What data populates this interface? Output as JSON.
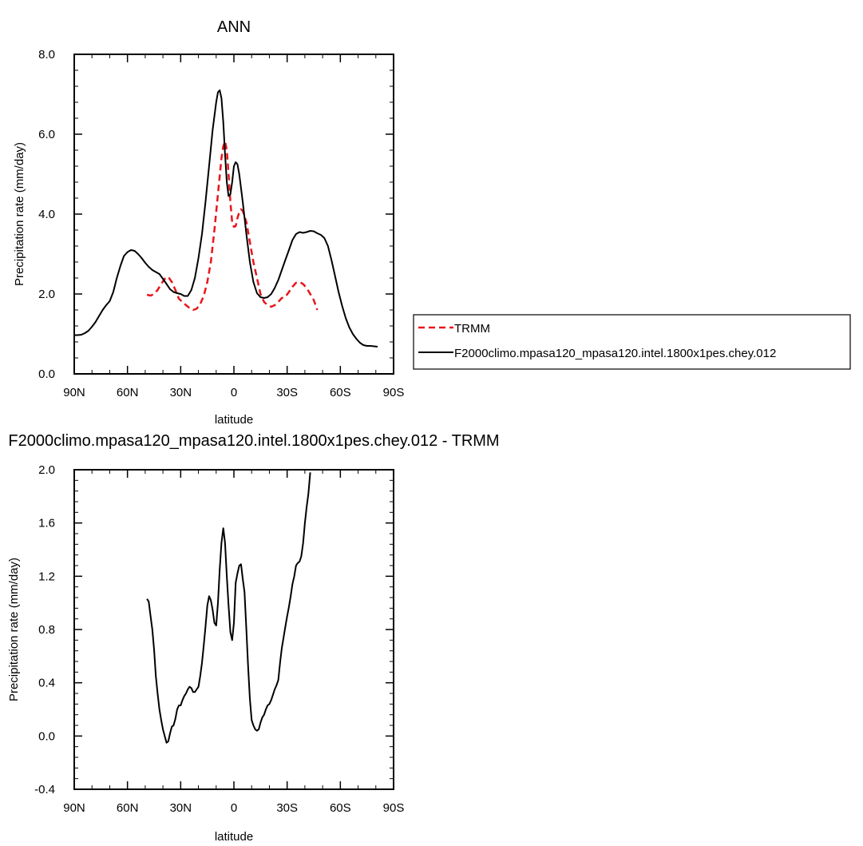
{
  "chart_data": [
    {
      "type": "line",
      "title": "ANN",
      "xlabel": "latitude",
      "ylabel": "Precipitation rate (mm/day)",
      "xlim": [
        90,
        -90
      ],
      "ylim": [
        0,
        8
      ],
      "xticks": [
        90,
        60,
        30,
        0,
        -30,
        -60,
        -90
      ],
      "xtick_labels": [
        "90N",
        "60N",
        "30N",
        "0",
        "30S",
        "60S",
        "90S"
      ],
      "yticks": [
        0,
        2,
        4,
        6,
        8
      ],
      "ytick_labels": [
        "0.0",
        "2.0",
        "4.0",
        "6.0",
        "8.0"
      ],
      "legend_position": "right",
      "series": [
        {
          "name": "TRMM",
          "color": "#e8161c",
          "dash": "dashed",
          "points": [
            [
              49,
              1.98
            ],
            [
              47,
              1.96
            ],
            [
              45,
              2.0
            ],
            [
              43,
              2.1
            ],
            [
              41,
              2.25
            ],
            [
              39,
              2.38
            ],
            [
              37,
              2.43
            ],
            [
              35,
              2.3
            ],
            [
              33,
              2.1
            ],
            [
              31,
              1.88
            ],
            [
              29,
              1.8
            ],
            [
              27,
              1.72
            ],
            [
              25,
              1.65
            ],
            [
              23,
              1.6
            ],
            [
              21,
              1.63
            ],
            [
              19,
              1.75
            ],
            [
              17,
              1.95
            ],
            [
              15,
              2.3
            ],
            [
              13,
              2.8
            ],
            [
              11,
              3.6
            ],
            [
              9,
              4.5
            ],
            [
              7,
              5.4
            ],
            [
              6,
              5.7
            ],
            [
              5,
              5.82
            ],
            [
              4,
              5.6
            ],
            [
              3,
              5.0
            ],
            [
              2,
              4.3
            ],
            [
              1,
              3.8
            ],
            [
              0,
              3.68
            ],
            [
              -1,
              3.7
            ],
            [
              -2,
              3.9
            ],
            [
              -3,
              4.05
            ],
            [
              -4,
              4.12
            ],
            [
              -5,
              4.08
            ],
            [
              -7,
              3.8
            ],
            [
              -9,
              3.3
            ],
            [
              -11,
              2.8
            ],
            [
              -13,
              2.4
            ],
            [
              -15,
              2.0
            ],
            [
              -17,
              1.8
            ],
            [
              -19,
              1.72
            ],
            [
              -21,
              1.68
            ],
            [
              -23,
              1.72
            ],
            [
              -25,
              1.8
            ],
            [
              -27,
              1.9
            ],
            [
              -29,
              1.93
            ],
            [
              -31,
              2.05
            ],
            [
              -33,
              2.18
            ],
            [
              -35,
              2.28
            ],
            [
              -37,
              2.3
            ],
            [
              -39,
              2.25
            ],
            [
              -41,
              2.15
            ],
            [
              -43,
              2.0
            ],
            [
              -45,
              1.85
            ],
            [
              -47,
              1.6
            ]
          ]
        },
        {
          "name": "F2000climo.mpasa120_mpasa120.intel.1800x1pes.chey.012",
          "color": "#000000",
          "dash": "solid",
          "points": [
            [
              90,
              0.97
            ],
            [
              88,
              0.97
            ],
            [
              86,
              0.98
            ],
            [
              84,
              1.02
            ],
            [
              82,
              1.08
            ],
            [
              80,
              1.18
            ],
            [
              78,
              1.3
            ],
            [
              76,
              1.45
            ],
            [
              74,
              1.6
            ],
            [
              72,
              1.72
            ],
            [
              70,
              1.82
            ],
            [
              68,
              2.05
            ],
            [
              66,
              2.4
            ],
            [
              64,
              2.7
            ],
            [
              62,
              2.95
            ],
            [
              60,
              3.05
            ],
            [
              58,
              3.1
            ],
            [
              56,
              3.08
            ],
            [
              54,
              3.0
            ],
            [
              52,
              2.9
            ],
            [
              50,
              2.78
            ],
            [
              48,
              2.68
            ],
            [
              46,
              2.6
            ],
            [
              44,
              2.55
            ],
            [
              42,
              2.5
            ],
            [
              40,
              2.38
            ],
            [
              38,
              2.25
            ],
            [
              36,
              2.12
            ],
            [
              34,
              2.05
            ],
            [
              32,
              2.02
            ],
            [
              30,
              2.0
            ],
            [
              28,
              1.95
            ],
            [
              26,
              1.95
            ],
            [
              24,
              2.1
            ],
            [
              22,
              2.4
            ],
            [
              20,
              2.9
            ],
            [
              18,
              3.5
            ],
            [
              16,
              4.3
            ],
            [
              14,
              5.2
            ],
            [
              12,
              6.1
            ],
            [
              10,
              6.8
            ],
            [
              9,
              7.05
            ],
            [
              8,
              7.1
            ],
            [
              7,
              6.9
            ],
            [
              6,
              6.3
            ],
            [
              5,
              5.5
            ],
            [
              4,
              4.8
            ],
            [
              3,
              4.45
            ],
            [
              2,
              4.5
            ],
            [
              1,
              4.8
            ],
            [
              0,
              5.2
            ],
            [
              -1,
              5.3
            ],
            [
              -2,
              5.25
            ],
            [
              -3,
              5.0
            ],
            [
              -5,
              4.3
            ],
            [
              -7,
              3.5
            ],
            [
              -9,
              2.8
            ],
            [
              -11,
              2.3
            ],
            [
              -13,
              2.02
            ],
            [
              -15,
              1.92
            ],
            [
              -17,
              1.9
            ],
            [
              -19,
              1.92
            ],
            [
              -21,
              2.0
            ],
            [
              -23,
              2.15
            ],
            [
              -25,
              2.35
            ],
            [
              -27,
              2.6
            ],
            [
              -29,
              2.85
            ],
            [
              -31,
              3.1
            ],
            [
              -33,
              3.35
            ],
            [
              -35,
              3.5
            ],
            [
              -37,
              3.55
            ],
            [
              -39,
              3.53
            ],
            [
              -41,
              3.55
            ],
            [
              -43,
              3.58
            ],
            [
              -45,
              3.57
            ],
            [
              -47,
              3.52
            ],
            [
              -49,
              3.48
            ],
            [
              -51,
              3.4
            ],
            [
              -53,
              3.2
            ],
            [
              -55,
              2.85
            ],
            [
              -57,
              2.45
            ],
            [
              -59,
              2.05
            ],
            [
              -61,
              1.7
            ],
            [
              -63,
              1.4
            ],
            [
              -65,
              1.17
            ],
            [
              -67,
              1.0
            ],
            [
              -69,
              0.88
            ],
            [
              -71,
              0.78
            ],
            [
              -73,
              0.72
            ],
            [
              -75,
              0.7
            ],
            [
              -77,
              0.7
            ],
            [
              -79,
              0.69
            ],
            [
              -81,
              0.68
            ]
          ]
        }
      ]
    },
    {
      "type": "line",
      "title": "F2000climo.mpasa120_mpasa120.intel.1800x1pes.chey.012 - TRMM",
      "xlabel": "latitude",
      "ylabel": "Precipitation rate (mm/day)",
      "xlim": [
        90,
        -90
      ],
      "ylim": [
        -0.4,
        2.0
      ],
      "xticks": [
        90,
        60,
        30,
        0,
        -30,
        -60,
        -90
      ],
      "xtick_labels": [
        "90N",
        "60N",
        "30N",
        "0",
        "30S",
        "60S",
        "90S"
      ],
      "yticks": [
        -0.4,
        0.0,
        0.4,
        0.8,
        1.2,
        1.6,
        2.0
      ],
      "ytick_labels": [
        "-0.4",
        "0.0",
        "0.4",
        "0.8",
        "1.2",
        "1.6",
        "2.0"
      ],
      "series": [
        {
          "name": "F2000climo.mpasa120_mpasa120.intel.1800x1pes.chey.012 - TRMM",
          "color": "#000000",
          "dash": "solid",
          "points": [
            [
              49,
              1.03
            ],
            [
              48,
              1.01
            ],
            [
              47,
              0.9
            ],
            [
              46,
              0.8
            ],
            [
              45,
              0.65
            ],
            [
              44,
              0.45
            ],
            [
              43,
              0.32
            ],
            [
              42,
              0.2
            ],
            [
              41,
              0.12
            ],
            [
              40,
              0.05
            ],
            [
              39,
              0.0
            ],
            [
              38,
              -0.05
            ],
            [
              37,
              -0.04
            ],
            [
              36,
              0.02
            ],
            [
              35,
              0.07
            ],
            [
              34,
              0.08
            ],
            [
              33,
              0.13
            ],
            [
              32,
              0.2
            ],
            [
              31,
              0.23
            ],
            [
              30,
              0.23
            ],
            [
              29,
              0.27
            ],
            [
              28,
              0.3
            ],
            [
              27,
              0.32
            ],
            [
              26,
              0.35
            ],
            [
              25,
              0.37
            ],
            [
              24,
              0.36
            ],
            [
              23,
              0.33
            ],
            [
              22,
              0.33
            ],
            [
              21,
              0.35
            ],
            [
              20,
              0.37
            ],
            [
              19,
              0.45
            ],
            [
              18,
              0.55
            ],
            [
              17,
              0.68
            ],
            [
              16,
              0.82
            ],
            [
              15,
              0.98
            ],
            [
              14,
              1.05
            ],
            [
              13,
              1.02
            ],
            [
              12,
              0.95
            ],
            [
              11,
              0.85
            ],
            [
              10,
              0.83
            ],
            [
              9,
              1.0
            ],
            [
              8,
              1.25
            ],
            [
              7,
              1.45
            ],
            [
              6,
              1.56
            ],
            [
              5,
              1.45
            ],
            [
              4,
              1.2
            ],
            [
              3,
              0.98
            ],
            [
              2,
              0.78
            ],
            [
              1,
              0.72
            ],
            [
              0,
              0.85
            ],
            [
              -1,
              1.15
            ],
            [
              -2,
              1.22
            ],
            [
              -3,
              1.28
            ],
            [
              -4,
              1.29
            ],
            [
              -5,
              1.18
            ],
            [
              -6,
              1.08
            ],
            [
              -7,
              0.8
            ],
            [
              -8,
              0.52
            ],
            [
              -9,
              0.28
            ],
            [
              -10,
              0.12
            ],
            [
              -11,
              0.08
            ],
            [
              -12,
              0.05
            ],
            [
              -13,
              0.04
            ],
            [
              -14,
              0.05
            ],
            [
              -15,
              0.1
            ],
            [
              -16,
              0.14
            ],
            [
              -17,
              0.16
            ],
            [
              -18,
              0.2
            ],
            [
              -19,
              0.23
            ],
            [
              -20,
              0.24
            ],
            [
              -21,
              0.27
            ],
            [
              -22,
              0.31
            ],
            [
              -23,
              0.35
            ],
            [
              -24,
              0.38
            ],
            [
              -25,
              0.42
            ],
            [
              -26,
              0.55
            ],
            [
              -27,
              0.66
            ],
            [
              -28,
              0.74
            ],
            [
              -29,
              0.82
            ],
            [
              -30,
              0.9
            ],
            [
              -31,
              0.97
            ],
            [
              -32,
              1.05
            ],
            [
              -33,
              1.14
            ],
            [
              -34,
              1.2
            ],
            [
              -35,
              1.28
            ],
            [
              -36,
              1.3
            ],
            [
              -37,
              1.31
            ],
            [
              -38,
              1.35
            ],
            [
              -39,
              1.45
            ],
            [
              -40,
              1.6
            ],
            [
              -41,
              1.72
            ],
            [
              -42,
              1.82
            ],
            [
              -43,
              1.98
            ]
          ]
        }
      ]
    }
  ]
}
